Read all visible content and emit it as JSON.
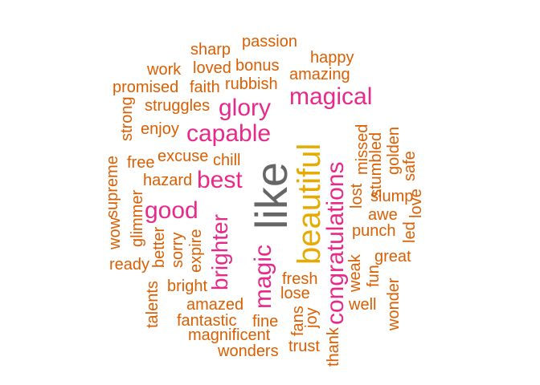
{
  "colors": {
    "orange": "#D95F02",
    "magenta": "#E7298A",
    "gold": "#E6AB02",
    "gray": "#666666"
  },
  "words": [
    {
      "text": "like",
      "color": "#666666"
    },
    {
      "text": "beautiful",
      "color": "#E6AB02"
    },
    {
      "text": "congratulations",
      "color": "#E7298A"
    },
    {
      "text": "magic",
      "color": "#E7298A"
    },
    {
      "text": "brighter",
      "color": "#E7298A"
    },
    {
      "text": "capable",
      "color": "#E7298A"
    },
    {
      "text": "magical",
      "color": "#E7298A"
    },
    {
      "text": "glory",
      "color": "#E7298A"
    },
    {
      "text": "good",
      "color": "#E7298A"
    },
    {
      "text": "best",
      "color": "#E7298A"
    },
    {
      "text": "passion",
      "color": "#D95F02"
    },
    {
      "text": "sharp",
      "color": "#D95F02"
    },
    {
      "text": "happy",
      "color": "#D95F02"
    },
    {
      "text": "work",
      "color": "#D95F02"
    },
    {
      "text": "loved",
      "color": "#D95F02"
    },
    {
      "text": "bonus",
      "color": "#D95F02"
    },
    {
      "text": "amazing",
      "color": "#D95F02"
    },
    {
      "text": "promised",
      "color": "#D95F02"
    },
    {
      "text": "faith",
      "color": "#D95F02"
    },
    {
      "text": "rubbish",
      "color": "#D95F02"
    },
    {
      "text": "struggles",
      "color": "#D95F02"
    },
    {
      "text": "strong",
      "color": "#D95F02"
    },
    {
      "text": "enjoy",
      "color": "#D95F02"
    },
    {
      "text": "missed",
      "color": "#D95F02"
    },
    {
      "text": "stumbled",
      "color": "#D95F02"
    },
    {
      "text": "golden",
      "color": "#D95F02"
    },
    {
      "text": "safe",
      "color": "#D95F02"
    },
    {
      "text": "free",
      "color": "#D95F02"
    },
    {
      "text": "excuse",
      "color": "#D95F02"
    },
    {
      "text": "chill",
      "color": "#D95F02"
    },
    {
      "text": "supreme",
      "color": "#D95F02"
    },
    {
      "text": "hazard",
      "color": "#D95F02"
    },
    {
      "text": "lost",
      "color": "#D95F02"
    },
    {
      "text": "slump",
      "color": "#D95F02"
    },
    {
      "text": "love",
      "color": "#D95F02"
    },
    {
      "text": "awe",
      "color": "#D95F02"
    },
    {
      "text": "wow",
      "color": "#D95F02"
    },
    {
      "text": "glimmer",
      "color": "#D95F02"
    },
    {
      "text": "punch",
      "color": "#D95F02"
    },
    {
      "text": "led",
      "color": "#D95F02"
    },
    {
      "text": "better",
      "color": "#D95F02"
    },
    {
      "text": "sorry",
      "color": "#D95F02"
    },
    {
      "text": "expire",
      "color": "#D95F02"
    },
    {
      "text": "ready",
      "color": "#D95F02"
    },
    {
      "text": "great",
      "color": "#D95F02"
    },
    {
      "text": "weak",
      "color": "#D95F02"
    },
    {
      "text": "fun",
      "color": "#D95F02"
    },
    {
      "text": "fresh",
      "color": "#D95F02"
    },
    {
      "text": "bright",
      "color": "#D95F02"
    },
    {
      "text": "talents",
      "color": "#D95F02"
    },
    {
      "text": "lose",
      "color": "#D95F02"
    },
    {
      "text": "wonder",
      "color": "#D95F02"
    },
    {
      "text": "well",
      "color": "#D95F02"
    },
    {
      "text": "amazed",
      "color": "#D95F02"
    },
    {
      "text": "fans",
      "color": "#D95F02"
    },
    {
      "text": "joy",
      "color": "#D95F02"
    },
    {
      "text": "fantastic",
      "color": "#D95F02"
    },
    {
      "text": "fine",
      "color": "#D95F02"
    },
    {
      "text": "magnificent",
      "color": "#D95F02"
    },
    {
      "text": "trust",
      "color": "#D95F02"
    },
    {
      "text": "thank",
      "color": "#D95F02"
    },
    {
      "text": "wonders",
      "color": "#D95F02"
    }
  ]
}
